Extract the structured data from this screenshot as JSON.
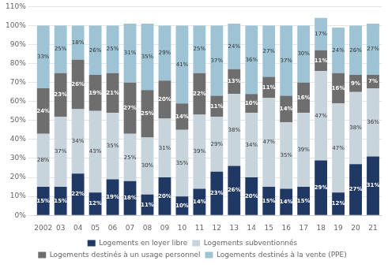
{
  "chart_data": {
    "type": "bar",
    "stacked": true,
    "grid": true,
    "legend": "bottom",
    "data_labels": true,
    "categories": [
      "2002",
      "03",
      "04",
      "05",
      "06",
      "07",
      "08",
      "09",
      "10",
      "11",
      "12",
      "13",
      "14",
      "15",
      "16",
      "17",
      "18",
      "19",
      "20",
      "21"
    ],
    "series": [
      {
        "name": "Logements en loyer libre",
        "color": "#1F3864",
        "values": [
          15,
          15,
          22,
          12,
          19,
          18,
          11,
          20,
          10,
          14,
          23,
          26,
          20,
          15,
          14,
          15,
          29,
          12,
          27,
          31
        ],
        "value_labels": [
          "15%",
          "15%",
          "22%",
          "12%",
          "19%",
          "18%",
          "11%",
          "20%",
          "10%",
          "14%",
          "23%",
          "26%",
          "20%",
          "15%",
          "14%",
          "15%",
          "29%",
          "12%",
          "27%",
          "31%"
        ]
      },
      {
        "name": "Logements subventionnés",
        "color": "#C8D4DC",
        "values": [
          28,
          37,
          34,
          43,
          35,
          25,
          30,
          31,
          35,
          39,
          29,
          38,
          34,
          47,
          35,
          39,
          47,
          47,
          38,
          36
        ],
        "value_labels": [
          "28%",
          "37%",
          "34%",
          "43%",
          "35%",
          "25%",
          "30%",
          "31%",
          "35%",
          "39%",
          "29%",
          "38%",
          "34%",
          "47%",
          "35%",
          "39%",
          "47%",
          "47%",
          "38%",
          "36%"
        ]
      },
      {
        "name": "Logements destinés à un usage personnel",
        "color": "#6E6E6E",
        "values": [
          24,
          23,
          26,
          19,
          21,
          27,
          25,
          20,
          14,
          22,
          11,
          13,
          10,
          11,
          14,
          16,
          11,
          16,
          9,
          7
        ],
        "value_labels": [
          "24%",
          "23%",
          "26%",
          "19%",
          "21%",
          "27%",
          "25%",
          "20%",
          "14%",
          "22%",
          "11%",
          "13%",
          "10%",
          "11%",
          "14%",
          "16%",
          "11%",
          "16%",
          "9%",
          "7%"
        ]
      },
      {
        "name": "Logements destinés à la vente (PPE)",
        "color": "#9DC3D4",
        "values": [
          33,
          25,
          18,
          26,
          25,
          31,
          35,
          29,
          41,
          25,
          37,
          24,
          36,
          27,
          37,
          30,
          17,
          24,
          26,
          27
        ],
        "value_labels": [
          "33%",
          "25%",
          "18%",
          "26%",
          "25%",
          "31%",
          "35%",
          "29%",
          "41%",
          "25%",
          "37%",
          "24%",
          "36%",
          "27%",
          "37%",
          "30%",
          "17%",
          "24%",
          "26%",
          "27%"
        ]
      }
    ],
    "ylim": [
      0,
      110
    ],
    "yticks": [
      {
        "value": 0,
        "label": "0%"
      },
      {
        "value": 10,
        "label": "10%"
      },
      {
        "value": 20,
        "label": "20%"
      },
      {
        "value": 30,
        "label": "30%"
      },
      {
        "value": 40,
        "label": "40%"
      },
      {
        "value": 50,
        "label": "50%"
      },
      {
        "value": 60,
        "label": "60%"
      },
      {
        "value": 70,
        "label": "70%"
      },
      {
        "value": 80,
        "label": "80%"
      },
      {
        "value": 90,
        "label": "90%"
      },
      {
        "value": 100,
        "label": "100%"
      },
      {
        "value": 110,
        "label": "110%"
      }
    ]
  }
}
